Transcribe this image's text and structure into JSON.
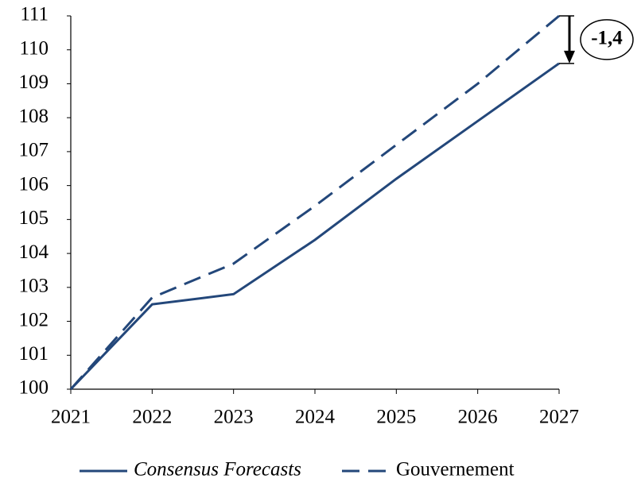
{
  "chart_data": {
    "type": "line",
    "categories": [
      "2021",
      "2022",
      "2023",
      "2024",
      "2025",
      "2026",
      "2027"
    ],
    "series": [
      {
        "name": "Consensus Forecasts",
        "color": "#23477a",
        "dash": false,
        "italic": true,
        "values": [
          100,
          102.5,
          102.8,
          104.4,
          106.2,
          107.9,
          109.6
        ]
      },
      {
        "name": "Gouvernement",
        "color": "#23477a",
        "dash": true,
        "italic": false,
        "values": [
          100,
          102.7,
          103.7,
          105.4,
          107.2,
          109.0,
          111.0
        ]
      }
    ],
    "ylim": [
      100,
      111
    ],
    "yticks": [
      100,
      101,
      102,
      103,
      104,
      105,
      106,
      107,
      108,
      109,
      110,
      111
    ],
    "grid": false,
    "legend": "bottom",
    "annotation": "-1,4"
  }
}
